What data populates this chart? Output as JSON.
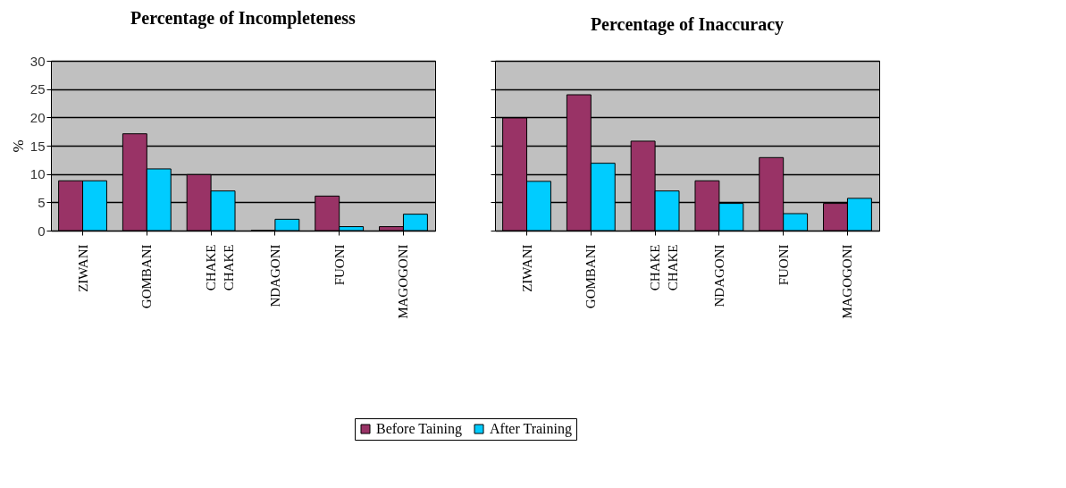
{
  "chart_data": [
    {
      "type": "bar",
      "title": "Percentage of Incompleteness",
      "ylabel": "%",
      "categories": [
        "ZIWANI",
        "GOMBANI",
        "CHAKE CHAKE",
        "NDAGONI",
        "FUONI",
        "MAGOGONI"
      ],
      "series": [
        {
          "name": "Before Taining",
          "color": "#993366",
          "values": [
            8.8,
            17.1,
            9.9,
            0,
            6.1,
            0.7
          ]
        },
        {
          "name": "After Training",
          "color": "#00ccff",
          "values": [
            8.8,
            10.9,
            7.0,
            2.0,
            0.7,
            2.9
          ]
        }
      ],
      "ylim": [
        0,
        30
      ],
      "yticks": [
        0,
        5,
        10,
        15,
        20,
        25,
        30
      ],
      "grid": "y",
      "legend": "bottom"
    },
    {
      "type": "bar",
      "title": "Percentage of Inaccuracy",
      "categories": [
        "ZIWANI",
        "GOMBANI",
        "CHAKE CHAKE",
        "NDAGONI",
        "FUONI",
        "MAGOGONI"
      ],
      "series": [
        {
          "name": "Before Taining",
          "color": "#993366",
          "values": [
            19.9,
            24.0,
            15.8,
            8.8,
            12.9,
            4.8
          ]
        },
        {
          "name": "After Training",
          "color": "#00ccff",
          "values": [
            8.7,
            11.9,
            7.0,
            4.8,
            3.0,
            5.7
          ]
        }
      ],
      "ylim": [
        0,
        30
      ],
      "yticks": [
        0,
        5,
        10,
        15,
        20,
        25,
        30
      ],
      "grid": "y",
      "legend": "bottom",
      "tick_labels": "x"
    }
  ]
}
